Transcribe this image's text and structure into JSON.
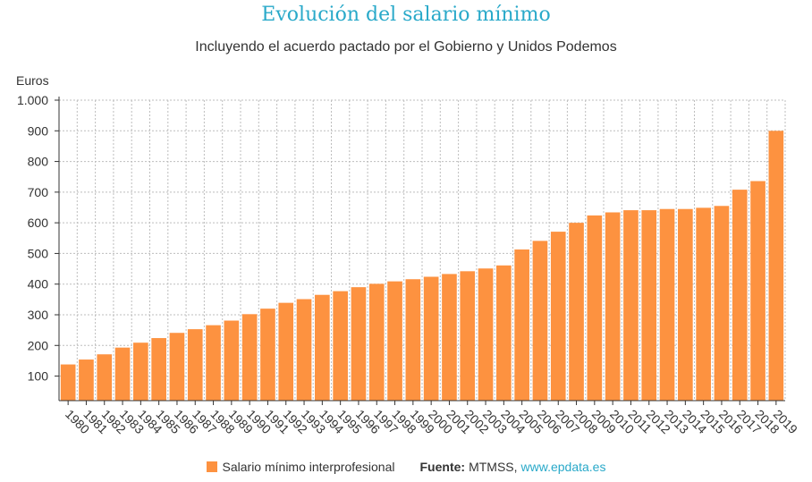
{
  "header": {
    "title": "Evolución del salario mínimo",
    "subtitle": "Incluyendo el acuerdo pactado por el Gobierno y Unidos Podemos"
  },
  "legend": {
    "series_label": "Salario mínimo interprofesional",
    "source_label": "Fuente:",
    "source_name": "MTMSS,",
    "source_link": "www.epdata.es"
  },
  "colors": {
    "bar": "#fd9240",
    "title": "#29a9c9",
    "grid": "#bdbdbd"
  },
  "chart_data": {
    "type": "bar",
    "title": "Evolución del salario mínimo",
    "subtitle": "Incluyendo el acuerdo pactado por el Gobierno y Unidos Podemos",
    "ylabel": "Euros",
    "xlabel": "",
    "ylim": [
      20,
      1000
    ],
    "yticks": [
      100,
      200,
      300,
      400,
      500,
      600,
      700,
      800,
      900,
      1000
    ],
    "ytick_labels": [
      "100",
      "200",
      "300",
      "400",
      "500",
      "600",
      "700",
      "800",
      "900",
      "1.000"
    ],
    "grid": true,
    "legend_position": "bottom",
    "categories": [
      "1980",
      "1981",
      "1982",
      "1983",
      "1984",
      "1985",
      "1986",
      "1987",
      "1988",
      "1989",
      "1990",
      "1991",
      "1992",
      "1993",
      "1994",
      "1995",
      "1996",
      "1997",
      "1998",
      "1999",
      "2000",
      "2001",
      "2002",
      "2003",
      "2004",
      "2005",
      "2006",
      "2007",
      "2008",
      "2009",
      "2010",
      "2011",
      "2012",
      "2013",
      "2014",
      "2015",
      "2016",
      "2017",
      "2018",
      "2019"
    ],
    "series": [
      {
        "name": "Salario mínimo interprofesional",
        "values": [
          138,
          154,
          171,
          193,
          209,
          224,
          241,
          253,
          266,
          281,
          302,
          320,
          339,
          351,
          365,
          377,
          390,
          401,
          409,
          416,
          424,
          433,
          442,
          451,
          461,
          513,
          541,
          571,
          600,
          624,
          634,
          641,
          641,
          645,
          645,
          649,
          655,
          708,
          736,
          900
        ]
      }
    ]
  }
}
